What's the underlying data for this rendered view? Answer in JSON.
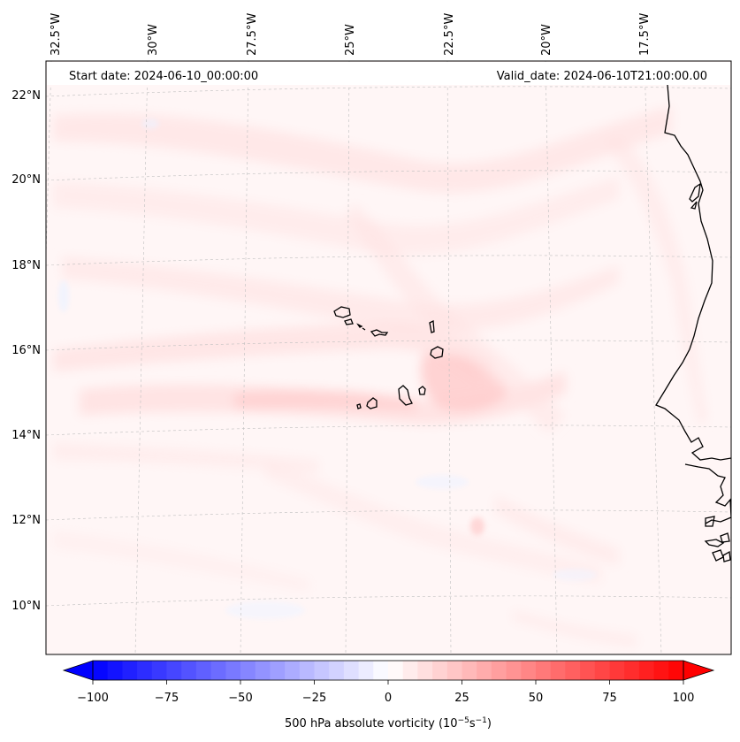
{
  "header": {
    "start_date": "Start date: 2024-06-10_00:00:00",
    "valid_date": "Valid_date: 2024-06-10T21:00:00.00"
  },
  "lon_labels": [
    "32.5°W",
    "30°W",
    "27.5°W",
    "25°W",
    "22.5°W",
    "20°W",
    "17.5°W"
  ],
  "lat_labels": [
    "22°N",
    "20°N",
    "18°N",
    "16°N",
    "14°N",
    "12°N",
    "10°N"
  ],
  "colorbar": {
    "ticks": [
      "−100",
      "−75",
      "−50",
      "−25",
      "0",
      "25",
      "50",
      "75",
      "100"
    ],
    "label_prefix": "500 hPa absolute vorticity (10",
    "exp1": "−5",
    "label_mid": "s",
    "exp2": "−1",
    "label_suffix": ")",
    "range": [
      -100,
      100
    ],
    "step": 5,
    "min_color": "#0000ff",
    "mid_color": "#ffffff",
    "max_color": "#ff0000"
  },
  "colors": {
    "background_field": "#fff6f6",
    "coastline": "#000000",
    "grid": "#bfbfbf"
  }
}
